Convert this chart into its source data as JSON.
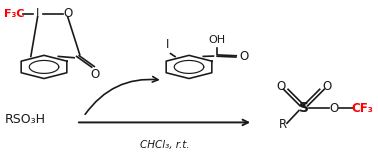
{
  "background_color": "#ffffff",
  "figsize": [
    3.78,
    1.67
  ],
  "dpi": 100,
  "text_color": "#1a1a1a",
  "red_color": "#ff0000",
  "reactant_label": "RSO₃H",
  "condition_label": "CHCl₃, r.t.",
  "product_R_label": "R",
  "product_S_label": "S",
  "product_O_label": "O",
  "product_CF3_label": "CF₃",
  "F3C_label": "F₃C",
  "I_label": "I",
  "O_label": "O",
  "OH_label": "OH"
}
